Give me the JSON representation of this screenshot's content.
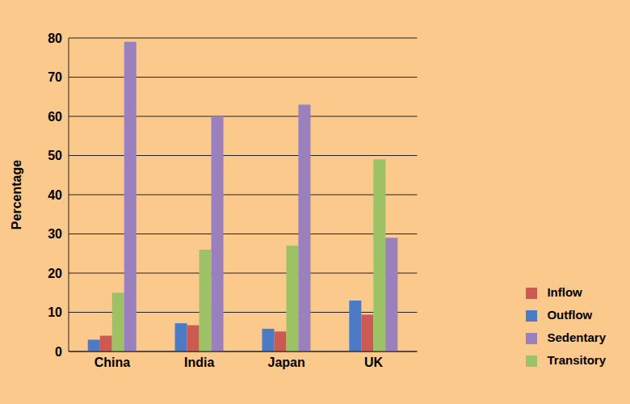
{
  "chart_data": {
    "type": "bar",
    "y_label": "Percentage",
    "categories": [
      "China",
      "India",
      "Japan",
      "UK"
    ],
    "series": [
      {
        "name": "Outflow",
        "color": "#4a7bc4",
        "values": [
          3,
          7.2,
          5.8,
          13
        ]
      },
      {
        "name": "Inflow",
        "color": "#cd5a52",
        "values": [
          4,
          6.7,
          5.1,
          9.4
        ]
      },
      {
        "name": "Transitory",
        "color": "#9dc266",
        "values": [
          15,
          26,
          27,
          49
        ]
      },
      {
        "name": "Sedentary",
        "color": "#9a80bd",
        "values": [
          79,
          60,
          63,
          29
        ]
      }
    ],
    "ylim": [
      0,
      80
    ],
    "yticks": [
      0,
      10,
      20,
      30,
      40,
      50,
      60,
      70,
      80
    ],
    "grid": true,
    "legend": "right"
  }
}
